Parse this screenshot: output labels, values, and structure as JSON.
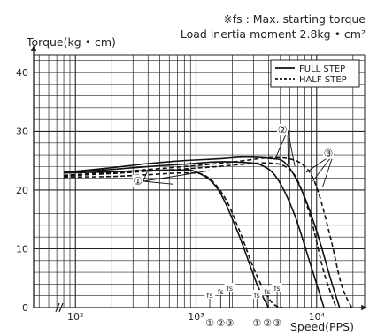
{
  "chart_data": {
    "type": "line",
    "notes": [
      "※fs : Max. starting torque",
      "Load inertia moment 2.8kg • cm²"
    ],
    "ylabel": "Torque(kg • cm)",
    "xlabel": "Speed(PPS)",
    "x_scale": "log",
    "xlim": [
      45,
      25000
    ],
    "ylim": [
      0,
      43
    ],
    "yticks": [
      0,
      10,
      20,
      30,
      40
    ],
    "xtick_labels": [
      {
        "value": 100,
        "text": "10²"
      },
      {
        "value": 1000,
        "text": "10³"
      },
      {
        "value": 10000,
        "text": "10⁴"
      }
    ],
    "grid": true,
    "legend": {
      "placement": "top-right",
      "entries": [
        {
          "label": "FULL STEP",
          "style": "solid"
        },
        {
          "label": "HALF STEP",
          "style": "dashed"
        }
      ]
    },
    "annotations": {
      "fs_label": "fs",
      "fs_markers": [
        {
          "x": 1300,
          "group": "full",
          "circle": "①"
        },
        {
          "x": 1600,
          "group": "full",
          "circle": "②"
        },
        {
          "x": 1900,
          "group": "full",
          "circle": "③"
        },
        {
          "x": 3200,
          "group": "half",
          "circle": "①"
        },
        {
          "x": 3900,
          "group": "half",
          "circle": "②"
        },
        {
          "x": 4700,
          "group": "half",
          "circle": "③"
        }
      ],
      "callouts": [
        {
          "label": "①",
          "x": 330,
          "y": 21.5,
          "targets": [
            [
              650,
              21.0
            ],
            [
              400,
              23.5
            ],
            [
              1300,
              23.3
            ]
          ]
        },
        {
          "label": "②",
          "x": 5200,
          "y": 30.2,
          "targets": [
            [
              4500,
              25.2
            ],
            [
              5800,
              24.5
            ],
            [
              6600,
              24.0
            ]
          ]
        },
        {
          "label": "③",
          "x": 12500,
          "y": 26.2,
          "targets": [
            [
              8200,
              23.0
            ],
            [
              9300,
              21.5
            ],
            [
              11200,
              20.5
            ]
          ]
        }
      ]
    },
    "series": [
      {
        "group": "full",
        "style": "solid",
        "x": [
          80,
          200,
          400,
          700,
          1000,
          1500,
          2200,
          3200,
          4000
        ],
        "y": [
          22.9,
          23.1,
          23.3,
          23.4,
          23.1,
          20.3,
          13.0,
          4.0,
          0
        ]
      },
      {
        "group": "full",
        "style": "solid",
        "x": [
          80,
          200,
          400,
          800,
          1500,
          2500,
          3500,
          4700,
          6500,
          9000,
          11500
        ],
        "y": [
          23.0,
          23.5,
          24.0,
          24.4,
          24.8,
          24.7,
          24.2,
          22.0,
          16.0,
          7.0,
          0
        ]
      },
      {
        "group": "full",
        "style": "solid",
        "x": [
          80,
          200,
          400,
          800,
          1500,
          2500,
          4000,
          5500,
          7500,
          10000,
          13000,
          15500
        ],
        "y": [
          23.0,
          23.8,
          24.5,
          25.0,
          25.3,
          25.6,
          25.4,
          24.6,
          20.0,
          13.0,
          5.0,
          0
        ]
      },
      {
        "group": "half",
        "style": "dashed",
        "x": [
          80,
          200,
          400,
          800,
          1200,
          1700,
          2300,
          3100,
          4200,
          5200
        ],
        "y": [
          22.2,
          22.3,
          22.6,
          22.9,
          22.4,
          19.0,
          13.0,
          6.0,
          1.0,
          0
        ]
      },
      {
        "group": "half",
        "style": "dashed",
        "x": [
          80,
          200,
          400,
          800,
          1500,
          2500,
          4000,
          5500,
          7000,
          9000,
          11500,
          14500
        ],
        "y": [
          22.4,
          22.8,
          23.2,
          23.6,
          24.0,
          24.4,
          24.6,
          24.0,
          21.5,
          15.0,
          6.0,
          0
        ]
      },
      {
        "group": "half",
        "style": "dashed",
        "x": [
          80,
          200,
          400,
          800,
          1500,
          2500,
          4000,
          6000,
          8000,
          10000,
          13000,
          16000,
          19500
        ],
        "y": [
          22.5,
          23.0,
          23.5,
          24.0,
          24.5,
          25.0,
          25.5,
          25.3,
          24.0,
          20.5,
          12.0,
          4.0,
          0
        ]
      }
    ]
  }
}
